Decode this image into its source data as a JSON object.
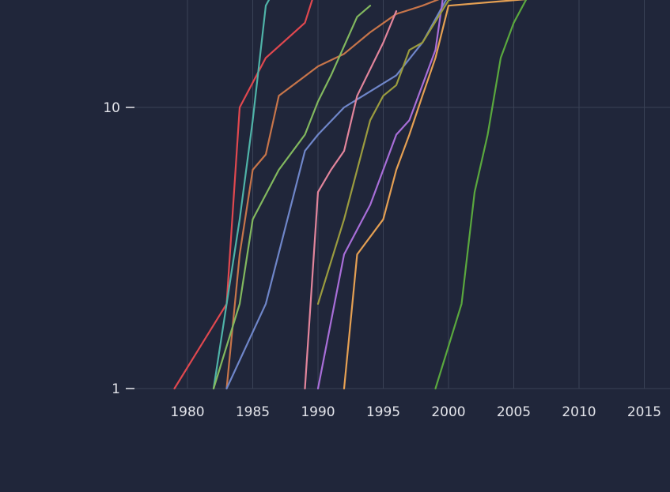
{
  "chart_data": {
    "type": "line",
    "title": "",
    "xlabel": "",
    "ylabel": "",
    "y_scale": "log",
    "xlim": [
      1976,
      2018
    ],
    "ylim": [
      1,
      28
    ],
    "x_ticks": [
      1980,
      1985,
      1990,
      1995,
      2000,
      2005,
      2010,
      2015
    ],
    "y_ticks": [
      1,
      10
    ],
    "grid": true,
    "legend": "none",
    "series": [
      {
        "color": "#e0484f",
        "x": [
          1979,
          1983,
          1984,
          1986,
          1987,
          1989,
          1990
        ],
        "y": [
          1,
          2,
          10,
          15,
          16.5,
          20,
          28
        ]
      },
      {
        "color": "#4fb3a8",
        "x": [
          1982,
          1984,
          1985,
          1986,
          1987
        ],
        "y": [
          1,
          4,
          9,
          23,
          28
        ]
      },
      {
        "color": "#c7754a",
        "x": [
          1983,
          1984,
          1985,
          1986,
          1987,
          1990,
          1992,
          1994,
          1996,
          1998,
          2000
        ],
        "y": [
          1,
          3,
          6,
          6.8,
          11,
          14,
          15.5,
          18.5,
          21.5,
          23,
          25
        ]
      },
      {
        "color": "#82b85f",
        "x": [
          1982,
          1984,
          1985,
          1987,
          1989,
          1990,
          1991,
          1993,
          1994
        ],
        "y": [
          1,
          2,
          4,
          6,
          8,
          10.5,
          13,
          21,
          23
        ]
      },
      {
        "color": "#6f86c9",
        "x": [
          1983,
          1986,
          1989,
          1990,
          1992,
          1996,
          1998,
          2000
        ],
        "y": [
          1,
          2,
          7,
          8,
          10,
          13,
          17,
          25
        ]
      },
      {
        "color": "#e2859c",
        "x": [
          1989,
          1990,
          1991,
          1992,
          1993,
          1995,
          1996
        ],
        "y": [
          1,
          5,
          6,
          7,
          11,
          17,
          22
        ]
      },
      {
        "color": "#a86ed8",
        "x": [
          1990,
          1992,
          1994,
          1996,
          1997,
          1999,
          1999.7
        ],
        "y": [
          1,
          3,
          4.5,
          8,
          9,
          16,
          27
        ]
      },
      {
        "color": "#9b9c3f",
        "x": [
          1990,
          1992,
          1994,
          1995,
          1996,
          1997,
          1998,
          2000,
          2001
        ],
        "y": [
          2,
          4,
          9,
          11,
          12,
          16,
          17,
          24,
          25
        ]
      },
      {
        "color": "#e5a053",
        "x": [
          1992,
          1993,
          1995,
          1996,
          1997,
          1998,
          1999,
          2000,
          2007,
          2010
        ],
        "y": [
          1,
          3,
          4,
          6,
          8,
          11,
          15,
          23,
          24.5,
          26.5
        ]
      },
      {
        "color": "#5aa83e",
        "x": [
          1999,
          2001,
          2002,
          2003,
          2004,
          2005,
          2006.5
        ],
        "y": [
          1,
          2,
          5,
          8,
          15,
          20,
          27
        ]
      }
    ]
  }
}
